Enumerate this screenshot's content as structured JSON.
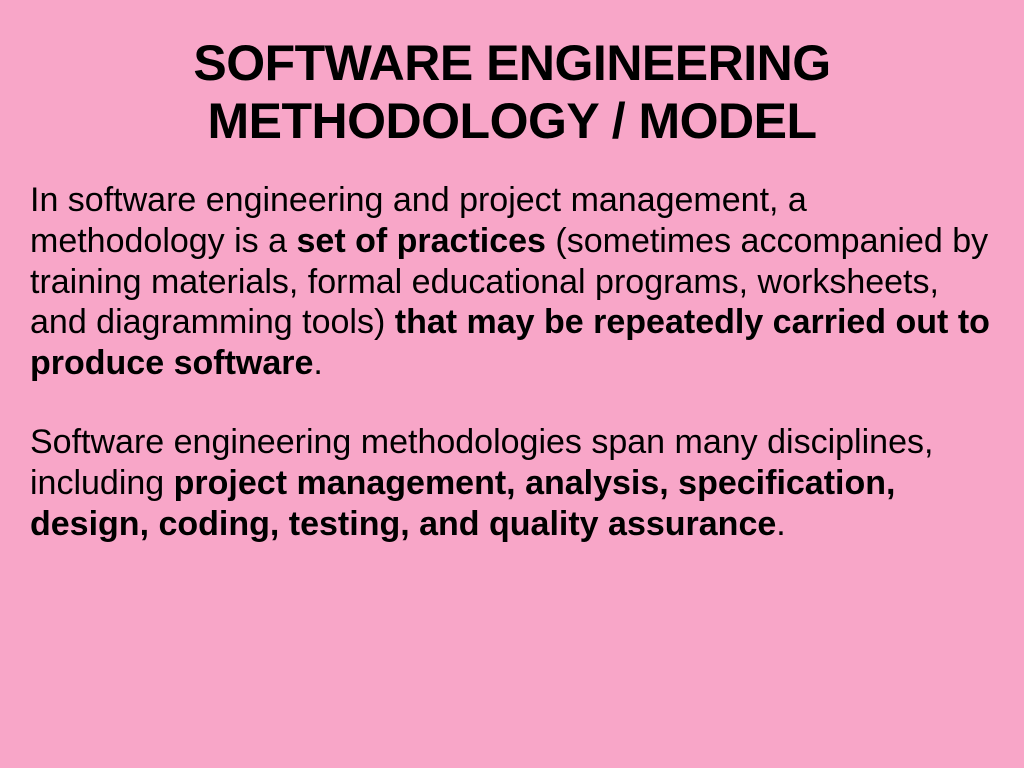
{
  "slide": {
    "background_color": "#f8a6c8",
    "text_color": "#000000",
    "title": "SOFTWARE ENGINEERING METHODOLOGY / MODEL",
    "title_fontsize": 50,
    "title_fontweight": 900,
    "body_fontsize": 34,
    "paragraph1": {
      "span1": "In software engineering and project management, a methodology is a ",
      "span2_bold": "set of practices ",
      "span3": "(sometimes accompanied by training materials, formal educational programs, worksheets, and diagramming tools) ",
      "span4_bold": "that may be repeatedly carried out to produce software",
      "span5": "."
    },
    "paragraph2": {
      "span1": "Software engineering methodologies span many disciplines, including ",
      "span2_bold": "project management, analysis, specification, design, coding, testing, and quality assurance",
      "span3": "."
    }
  }
}
